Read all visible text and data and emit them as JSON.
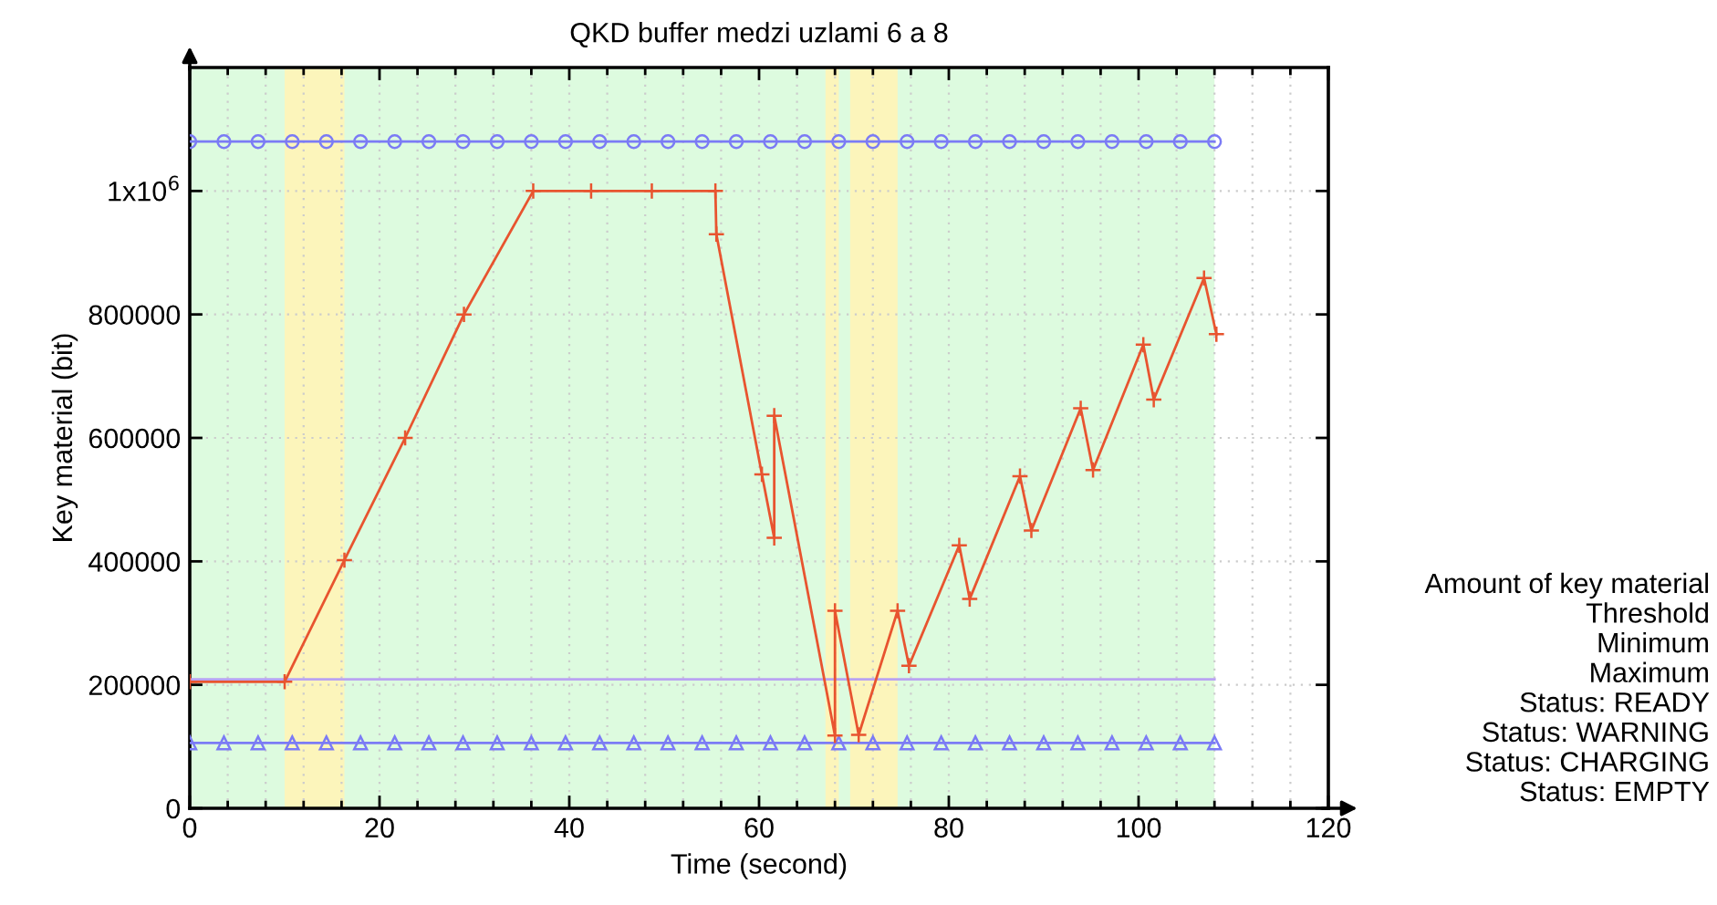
{
  "chart_data": {
    "type": "line",
    "title": "QKD buffer medzi uzlami 6 a 8",
    "xlabel": "Time (second)",
    "ylabel": "Key material (bit)",
    "xlim": [
      0,
      120
    ],
    "ylim": [
      0,
      1200000
    ],
    "xticks": [
      0,
      {
        "value": 4,
        "label": null
      },
      {
        "value": 8,
        "label": null
      },
      {
        "value": 12,
        "label": null
      },
      {
        "value": 16,
        "label": null
      },
      20,
      {
        "value": 24,
        "label": null
      },
      {
        "value": 28,
        "label": null
      },
      {
        "value": 32,
        "label": null
      },
      {
        "value": 36,
        "label": null
      },
      40,
      {
        "value": 44,
        "label": null
      },
      {
        "value": 48,
        "label": null
      },
      {
        "value": 52,
        "label": null
      },
      {
        "value": 56,
        "label": null
      },
      60,
      {
        "value": 64,
        "label": null
      },
      {
        "value": 68,
        "label": null
      },
      {
        "value": 72,
        "label": null
      },
      {
        "value": 76,
        "label": null
      },
      80,
      {
        "value": 84,
        "label": null
      },
      {
        "value": 88,
        "label": null
      },
      {
        "value": 92,
        "label": null
      },
      {
        "value": 96,
        "label": null
      },
      100,
      {
        "value": 104,
        "label": null
      },
      {
        "value": 108,
        "label": null
      },
      {
        "value": 112,
        "label": null
      },
      {
        "value": 116,
        "label": null
      },
      120
    ],
    "yticks": [
      0,
      200000,
      400000,
      600000,
      800000,
      {
        "value": 1000000,
        "label": "1x10$^{6}$"
      }
    ],
    "grid": true,
    "legend": false,
    "bands": [
      {
        "axis": "x",
        "from": 0,
        "to": 108,
        "color": "#ddfbdf"
      },
      {
        "axis": "x",
        "from": 10,
        "to": 16.3,
        "color": "#fcf5bb"
      },
      {
        "axis": "x",
        "from": 67,
        "to": 68.4,
        "color": "#fcf5bb"
      },
      {
        "axis": "x",
        "from": 69.6,
        "to": 74.6,
        "color": "#fcf5bb"
      }
    ],
    "series": [
      {
        "color": "#7b7bf5",
        "marker": "circle",
        "x": [
          0,
          3.6,
          7.2,
          10.8,
          14.4,
          18,
          21.6,
          25.2,
          28.8,
          32.4,
          36,
          39.6,
          43.2,
          46.8,
          50.4,
          54,
          57.6,
          61.2,
          64.8,
          68.4,
          72,
          75.6,
          79.2,
          82.8,
          86.4,
          90,
          93.6,
          97.2,
          100.8,
          104.4,
          108
        ],
        "values": [
          1080000,
          1080000,
          1080000,
          1080000,
          1080000,
          1080000,
          1080000,
          1080000,
          1080000,
          1080000,
          1080000,
          1080000,
          1080000,
          1080000,
          1080000,
          1080000,
          1080000,
          1080000,
          1080000,
          1080000,
          1080000,
          1080000,
          1080000,
          1080000,
          1080000,
          1080000,
          1080000,
          1080000,
          1080000,
          1080000,
          1080000
        ]
      },
      {
        "color": "#7b7bf5",
        "marker": "triangle",
        "x": [
          0,
          3.6,
          7.2,
          10.8,
          14.4,
          18,
          21.6,
          25.2,
          28.8,
          32.4,
          36,
          39.6,
          43.2,
          46.8,
          50.4,
          54,
          57.6,
          61.2,
          64.8,
          68.4,
          72,
          75.6,
          79.2,
          82.8,
          86.4,
          90,
          93.6,
          97.2,
          100.8,
          104.4,
          108
        ],
        "values": [
          106000,
          106000,
          106000,
          106000,
          106000,
          106000,
          106000,
          106000,
          106000,
          106000,
          106000,
          106000,
          106000,
          106000,
          106000,
          106000,
          106000,
          106000,
          106000,
          106000,
          106000,
          106000,
          106000,
          106000,
          106000,
          106000,
          106000,
          106000,
          106000,
          106000,
          106000
        ]
      },
      {
        "color": "#b9a3f2",
        "marker": "none",
        "x": [
          0,
          108
        ],
        "values": [
          209000,
          209000
        ]
      },
      {
        "color": "#e8542f",
        "marker": "cross",
        "x": [
          0,
          10,
          16.3,
          22.7,
          28.9,
          36.2,
          42.3,
          48.7,
          55.4,
          55.5,
          60.3,
          61.6,
          61.6,
          68.0,
          68.0,
          70.5,
          74.6,
          75.8,
          81.1,
          82.2,
          87.5,
          88.7,
          93.9,
          95.2,
          100.5,
          101.6,
          106.9,
          108.2
        ],
        "values": [
          205000,
          205000,
          402000,
          600000,
          800000,
          1000000,
          1000000,
          1000000,
          1000000,
          930000,
          541000,
          438000,
          636000,
          118000,
          320000,
          119000,
          320000,
          231000,
          426000,
          339000,
          538000,
          450000,
          648000,
          548000,
          751000,
          662000,
          859000,
          768000
        ]
      }
    ],
    "annotations": [
      "Amount of key material",
      "Threshold",
      "Minimum",
      "Maximum",
      "Status: READY",
      "Status: WARNING",
      "Status: CHARGING",
      "Status: EMPTY"
    ]
  }
}
